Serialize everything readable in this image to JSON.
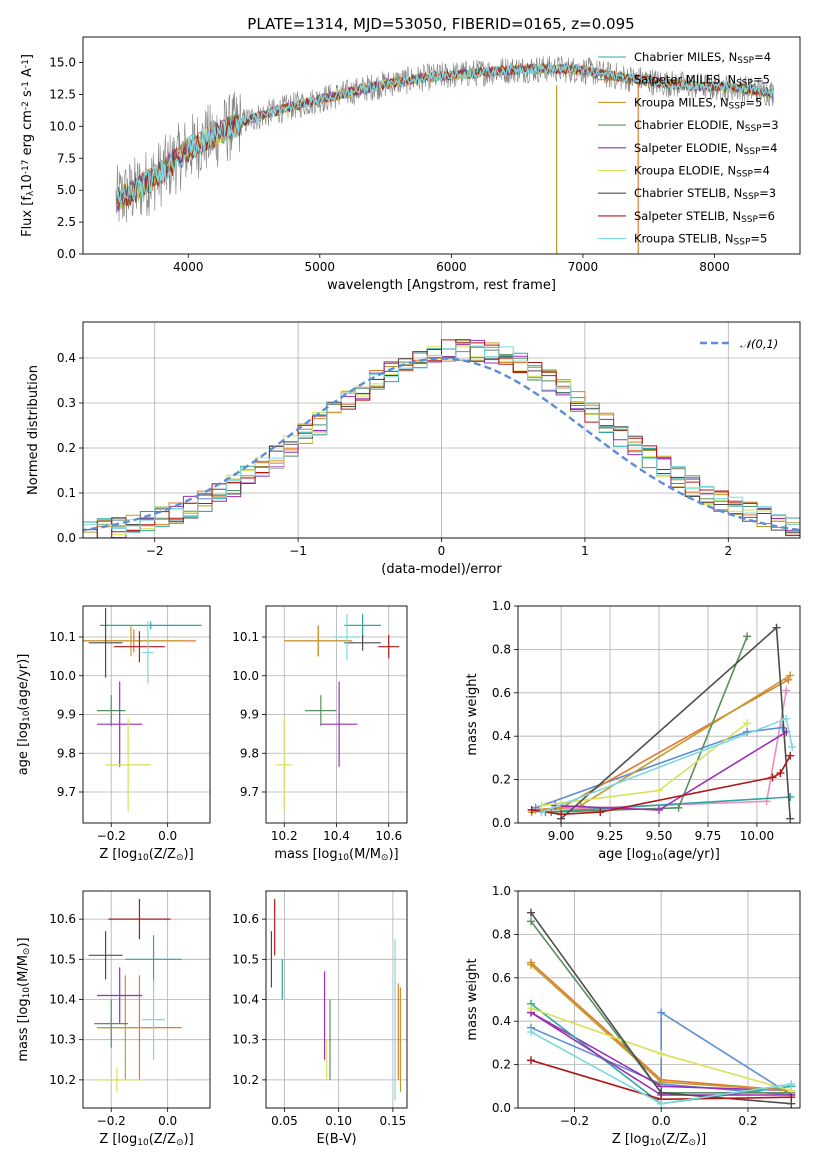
{
  "figure": {
    "title": "PLATE=1314, MJD=53050, FIBERID=0165, z=0.095"
  },
  "series": [
    {
      "name": "Chabrier MILES, N$_{SSP}$=4",
      "color": "#2ca8a0"
    },
    {
      "name": "Salpeter MILES, N$_{SSP}$=5",
      "color": "#e07a2c"
    },
    {
      "name": "Kroupa MILES, N$_{SSP}$=5",
      "color": "#c39a2e"
    },
    {
      "name": "Chabrier ELODIE, N$_{SSP}$=3",
      "color": "#5a8f60"
    },
    {
      "name": "Salpeter ELODIE, N$_{SSP}$=4",
      "color": "#9b2fb7"
    },
    {
      "name": "Kroupa ELODIE, N$_{SSP}$=4",
      "color": "#d6e25a"
    },
    {
      "name": "Chabrier STELIB, N$_{SSP}$=3",
      "color": "#4d4d4d"
    },
    {
      "name": "Salpeter STELIB, N$_{SSP}$=6",
      "color": "#b01818"
    },
    {
      "name": "Kroupa STELIB, N$_{SSP}$=5",
      "color": "#7fd8e0"
    }
  ],
  "chart_data": [
    {
      "type": "line",
      "panel": "spectrum",
      "xlabel": "wavelength [Angstrom, rest frame]",
      "ylabel": "Flux [f$_λ$10$^{-17}$ erg cm$^{-2}$ s$^{-1}$ A$^{-1}$]",
      "xlim": [
        3200,
        8650
      ],
      "ylim": [
        0,
        17
      ],
      "xticks": [
        4000,
        5000,
        6000,
        7000,
        8000
      ],
      "yticks": [
        0.0,
        2.5,
        5.0,
        7.5,
        10.0,
        12.5,
        15.0
      ],
      "legend": "right",
      "data_line_color": "#808080",
      "continuum": [
        [
          3450,
          4.2
        ],
        [
          3600,
          5.0
        ],
        [
          3800,
          6.4
        ],
        [
          4000,
          8.2
        ],
        [
          4200,
          9.3
        ],
        [
          4400,
          10.3
        ],
        [
          4600,
          11.0
        ],
        [
          4800,
          11.6
        ],
        [
          5000,
          12.1
        ],
        [
          5200,
          12.6
        ],
        [
          5400,
          13.1
        ],
        [
          5600,
          13.5
        ],
        [
          5800,
          13.8
        ],
        [
          6000,
          14.0
        ],
        [
          6200,
          14.2
        ],
        [
          6400,
          14.4
        ],
        [
          6600,
          14.5
        ],
        [
          6800,
          14.5
        ],
        [
          7000,
          14.4
        ],
        [
          7200,
          14.0
        ],
        [
          7400,
          13.7
        ],
        [
          7600,
          13.4
        ],
        [
          7800,
          13.2
        ],
        [
          8000,
          13.1
        ],
        [
          8200,
          13.0
        ],
        [
          8450,
          12.6
        ]
      ],
      "spikes": [
        {
          "x": 6800,
          "ymin": 0,
          "ymax": 13.2,
          "color": "#c39a2e"
        },
        {
          "x": 7420,
          "ymin": 0,
          "ymax": 13.5,
          "color": "#e07a2c"
        }
      ]
    },
    {
      "type": "line",
      "panel": "residuals",
      "xlabel": "(data-model)/error",
      "ylabel": "Normed distribution",
      "xlim": [
        -2.5,
        2.5
      ],
      "ylim": [
        0,
        0.48
      ],
      "xticks": [
        -2,
        -1,
        0,
        1,
        2
      ],
      "yticks": [
        0.0,
        0.1,
        0.2,
        0.3,
        0.4
      ],
      "legend": "upper right",
      "reference": {
        "name": "$\\mathcal{N}(0,1)$",
        "color": "#5b8ed6",
        "mean": 0,
        "std": 1
      },
      "bin_width": 0.1
    },
    {
      "type": "scatter",
      "panel": "age-vs-Z",
      "xlabel": "Z [log$_{10}$(Z/Z$_\\odot$)]",
      "ylabel": "age  [log$_{10}$(age/yr)]",
      "xlim": [
        -0.3,
        0.15
      ],
      "ylim": [
        9.62,
        10.18
      ],
      "xticks": [
        -0.2,
        0.0
      ],
      "yticks": [
        9.7,
        9.8,
        9.9,
        10.0,
        10.1
      ],
      "points": [
        {
          "s": 0,
          "x": -0.06,
          "xerr": 0.18,
          "y": 10.13,
          "yerr": 0.01
        },
        {
          "s": 1,
          "x": -0.12,
          "xerr": 0.22,
          "y": 10.09,
          "yerr": 0.03
        },
        {
          "s": 2,
          "x": -0.13,
          "xerr": 0.18,
          "y": 10.09,
          "yerr": 0.04
        },
        {
          "s": 3,
          "x": -0.2,
          "xerr": 0.05,
          "y": 9.91,
          "yerr": 0.04
        },
        {
          "s": 4,
          "x": -0.17,
          "xerr": 0.08,
          "y": 9.875,
          "yerr": 0.11
        },
        {
          "s": 5,
          "x": -0.14,
          "xerr": 0.08,
          "y": 9.77,
          "yerr": 0.12
        },
        {
          "s": 6,
          "x": -0.22,
          "xerr": 0.06,
          "y": 10.085,
          "yerr": 0.09
        },
        {
          "s": 7,
          "x": -0.1,
          "xerr": 0.09,
          "y": 10.075,
          "yerr": 0.04
        },
        {
          "s": 8,
          "x": -0.07,
          "xerr": 0.02,
          "y": 10.06,
          "yerr": 0.08
        }
      ]
    },
    {
      "type": "scatter",
      "panel": "age-vs-mass",
      "xlabel": "mass [log$_{10}$(M/M$_\\odot$)]",
      "ylabel": "",
      "xlim": [
        10.13,
        10.67
      ],
      "ylim": [
        9.62,
        10.18
      ],
      "xticks": [
        10.2,
        10.4,
        10.6
      ],
      "yticks": [
        9.7,
        9.8,
        9.9,
        10.0,
        10.1
      ],
      "points": [
        {
          "s": 0,
          "x": 10.5,
          "xerr": 0.07,
          "y": 10.13,
          "yerr": 0.03
        },
        {
          "s": 1,
          "x": 10.33,
          "xerr": 0.13,
          "y": 10.09,
          "yerr": 0.04
        },
        {
          "s": 2,
          "x": 10.33,
          "xerr": 0.13,
          "y": 10.09,
          "yerr": 0.04
        },
        {
          "s": 3,
          "x": 10.34,
          "xerr": 0.06,
          "y": 9.91,
          "yerr": 0.04
        },
        {
          "s": 4,
          "x": 10.41,
          "xerr": 0.07,
          "y": 9.875,
          "yerr": 0.11
        },
        {
          "s": 5,
          "x": 10.2,
          "xerr": 0.03,
          "y": 9.77,
          "yerr": 0.12
        },
        {
          "s": 6,
          "x": 10.5,
          "xerr": 0.07,
          "y": 10.085,
          "yerr": 0.02
        },
        {
          "s": 7,
          "x": 10.6,
          "xerr": 0.04,
          "y": 10.075,
          "yerr": 0.03
        },
        {
          "s": 8,
          "x": 10.44,
          "xerr": 0.05,
          "y": 10.1,
          "yerr": 0.06
        }
      ]
    },
    {
      "type": "line",
      "panel": "weight-vs-age",
      "xlabel": "age  [log$_{10}$(age/yr)]",
      "ylabel": "mass weight",
      "xlim": [
        8.78,
        10.22
      ],
      "ylim": [
        0,
        1.0
      ],
      "xticks": [
        9.0,
        9.25,
        9.5,
        9.75,
        10.0
      ],
      "yticks": [
        0.0,
        0.2,
        0.4,
        0.6,
        0.8,
        1.0
      ],
      "series_values": [
        {
          "s": 0,
          "x": [
            8.85,
            8.92,
            10.17
          ],
          "y": [
            0.06,
            0.05,
            0.12
          ]
        },
        {
          "s": 1,
          "x": [
            8.85,
            9.0,
            10.16
          ],
          "y": [
            0.06,
            0.07,
            0.66
          ]
        },
        {
          "s": 2,
          "x": [
            8.85,
            9.1,
            10.17
          ],
          "y": [
            0.05,
            0.08,
            0.68
          ]
        },
        {
          "s": 3,
          "x": [
            8.95,
            9.6,
            9.95
          ],
          "y": [
            0.05,
            0.07,
            0.86
          ]
        },
        {
          "s": 4,
          "x": [
            8.97,
            9.5,
            10.15
          ],
          "y": [
            0.08,
            0.06,
            0.42
          ]
        },
        {
          "s": 5,
          "x": [
            8.9,
            9.5,
            9.95
          ],
          "y": [
            0.08,
            0.15,
            0.46
          ]
        },
        {
          "s": 6,
          "x": [
            9.0,
            10.1,
            10.17
          ],
          "y": [
            0.02,
            0.9,
            0.02
          ]
        },
        {
          "s": 7,
          "x": [
            8.85,
            9.0,
            9.2,
            10.08,
            10.12,
            10.17
          ],
          "y": [
            0.06,
            0.04,
            0.05,
            0.21,
            0.23,
            0.31
          ]
        },
        {
          "s": 8,
          "x": [
            8.9,
            10.15,
            10.18
          ],
          "y": [
            0.05,
            0.48,
            0.35
          ]
        }
      ],
      "extra_series": [
        {
          "color": "#e98fbf",
          "x": [
            8.87,
            10.05,
            10.15
          ],
          "y": [
            0.06,
            0.1,
            0.61
          ]
        },
        {
          "color": "#5b8ed6",
          "x": [
            8.87,
            9.95,
            10.13
          ],
          "y": [
            0.07,
            0.42,
            0.44
          ]
        }
      ]
    },
    {
      "type": "scatter",
      "panel": "mass-vs-Z",
      "xlabel": "Z [log$_{10}$(Z/Z$_\\odot$)]",
      "ylabel": "mass [log$_{10}$(M/M$_\\odot$)]",
      "xlim": [
        -0.3,
        0.15
      ],
      "ylim": [
        10.13,
        10.67
      ],
      "xticks": [
        -0.2,
        0.0
      ],
      "yticks": [
        10.2,
        10.3,
        10.4,
        10.5,
        10.6
      ],
      "points": [
        {
          "s": 0,
          "x": -0.05,
          "xerr": 0.1,
          "y": 10.5,
          "yerr": 0.06
        },
        {
          "s": 1,
          "x": -0.1,
          "xerr": 0.15,
          "y": 10.33,
          "yerr": 0.13
        },
        {
          "s": 2,
          "x": -0.15,
          "xerr": 0.1,
          "y": 10.33,
          "yerr": 0.13
        },
        {
          "s": 3,
          "x": -0.2,
          "xerr": 0.06,
          "y": 10.34,
          "yerr": 0.06
        },
        {
          "s": 4,
          "x": -0.17,
          "xerr": 0.08,
          "y": 10.41,
          "yerr": 0.07
        },
        {
          "s": 5,
          "x": -0.18,
          "xerr": 0.08,
          "y": 10.2,
          "yerr": 0.03
        },
        {
          "s": 6,
          "x": -0.22,
          "xerr": 0.06,
          "y": 10.51,
          "yerr": 0.06
        },
        {
          "s": 7,
          "x": -0.1,
          "xerr": 0.11,
          "y": 10.6,
          "yerr": 0.05
        },
        {
          "s": 8,
          "x": -0.05,
          "xerr": 0.04,
          "y": 10.35,
          "yerr": 0.1
        }
      ]
    },
    {
      "type": "scatter",
      "panel": "mass-vs-EBV",
      "xlabel": "E(B-V)",
      "ylabel": "",
      "xlim": [
        0.033,
        0.163
      ],
      "ylim": [
        10.13,
        10.67
      ],
      "xticks": [
        0.05,
        0.1,
        0.15
      ],
      "yticks": [
        10.2,
        10.3,
        10.4,
        10.5,
        10.6
      ],
      "points": [
        {
          "s": 0,
          "x": 0.048,
          "xerr": 0,
          "y": 10.45,
          "yerr": 0.05
        },
        {
          "s": 1,
          "x": 0.155,
          "xerr": 0,
          "y": 10.32,
          "yerr": 0.12
        },
        {
          "s": 2,
          "x": 0.157,
          "xerr": 0,
          "y": 10.3,
          "yerr": 0.13
        },
        {
          "s": 3,
          "x": 0.092,
          "xerr": 0,
          "y": 10.3,
          "yerr": 0.1
        },
        {
          "s": 4,
          "x": 0.087,
          "xerr": 0,
          "y": 10.36,
          "yerr": 0.11
        },
        {
          "s": 5,
          "x": 0.089,
          "xerr": 0,
          "y": 10.25,
          "yerr": 0.05
        },
        {
          "s": 6,
          "x": 0.038,
          "xerr": 0,
          "y": 10.5,
          "yerr": 0.07
        },
        {
          "s": 7,
          "x": 0.041,
          "xerr": 0,
          "y": 10.58,
          "yerr": 0.07
        },
        {
          "s": 8,
          "x": 0.152,
          "xerr": 0,
          "y": 10.35,
          "yerr": 0.2
        }
      ]
    },
    {
      "type": "line",
      "panel": "weight-vs-Z",
      "xlabel": "Z [log$_{10}$(Z/Z$_\\odot$)]",
      "ylabel": "mass weight",
      "xlim": [
        -0.33,
        0.32
      ],
      "ylim": [
        0,
        1.0
      ],
      "xticks": [
        -0.2,
        0.0,
        0.2
      ],
      "yticks": [
        0.0,
        0.2,
        0.4,
        0.6,
        0.8,
        1.0
      ],
      "series_values": [
        {
          "s": 0,
          "x": [
            -0.3,
            0.0,
            0.3
          ],
          "y": [
            0.48,
            0.02,
            0.1
          ]
        },
        {
          "s": 1,
          "x": [
            -0.3,
            0.0,
            0.3
          ],
          "y": [
            0.67,
            0.13,
            0.08
          ]
        },
        {
          "s": 2,
          "x": [
            -0.3,
            0.0,
            0.3
          ],
          "y": [
            0.66,
            0.12,
            0.08
          ]
        },
        {
          "s": 3,
          "x": [
            -0.3,
            0.0,
            0.3
          ],
          "y": [
            0.86,
            0.07,
            0.07
          ]
        },
        {
          "s": 4,
          "x": [
            -0.3,
            0.0,
            0.3
          ],
          "y": [
            0.44,
            0.06,
            0.06
          ]
        },
        {
          "s": 5,
          "x": [
            -0.3,
            0.0,
            0.3
          ],
          "y": [
            0.46,
            0.25,
            0.08
          ]
        },
        {
          "s": 6,
          "x": [
            -0.3,
            0.0,
            0.3
          ],
          "y": [
            0.9,
            0.07,
            0.02
          ]
        },
        {
          "s": 7,
          "x": [
            -0.3,
            0.0,
            0.3
          ],
          "y": [
            0.22,
            0.04,
            0.05
          ]
        },
        {
          "s": 8,
          "x": [
            -0.3,
            0.0,
            0.3
          ],
          "y": [
            0.35,
            0.02,
            0.11
          ]
        }
      ],
      "extra_series": [
        {
          "color": "#5b8ed6",
          "x": [
            -0.3,
            0.0,
            0.3
          ],
          "y": [
            0.37,
            0.11,
            0.06
          ]
        },
        {
          "color": "#5b8ed6",
          "x": [
            0.0,
            0.0,
            0.3
          ],
          "y": [
            0.07,
            0.44,
            0.06
          ]
        },
        {
          "color": "#9b2fb7",
          "x": [
            -0.3,
            0.0,
            0.3
          ],
          "y": [
            0.44,
            0.1,
            0.08
          ]
        }
      ]
    }
  ]
}
